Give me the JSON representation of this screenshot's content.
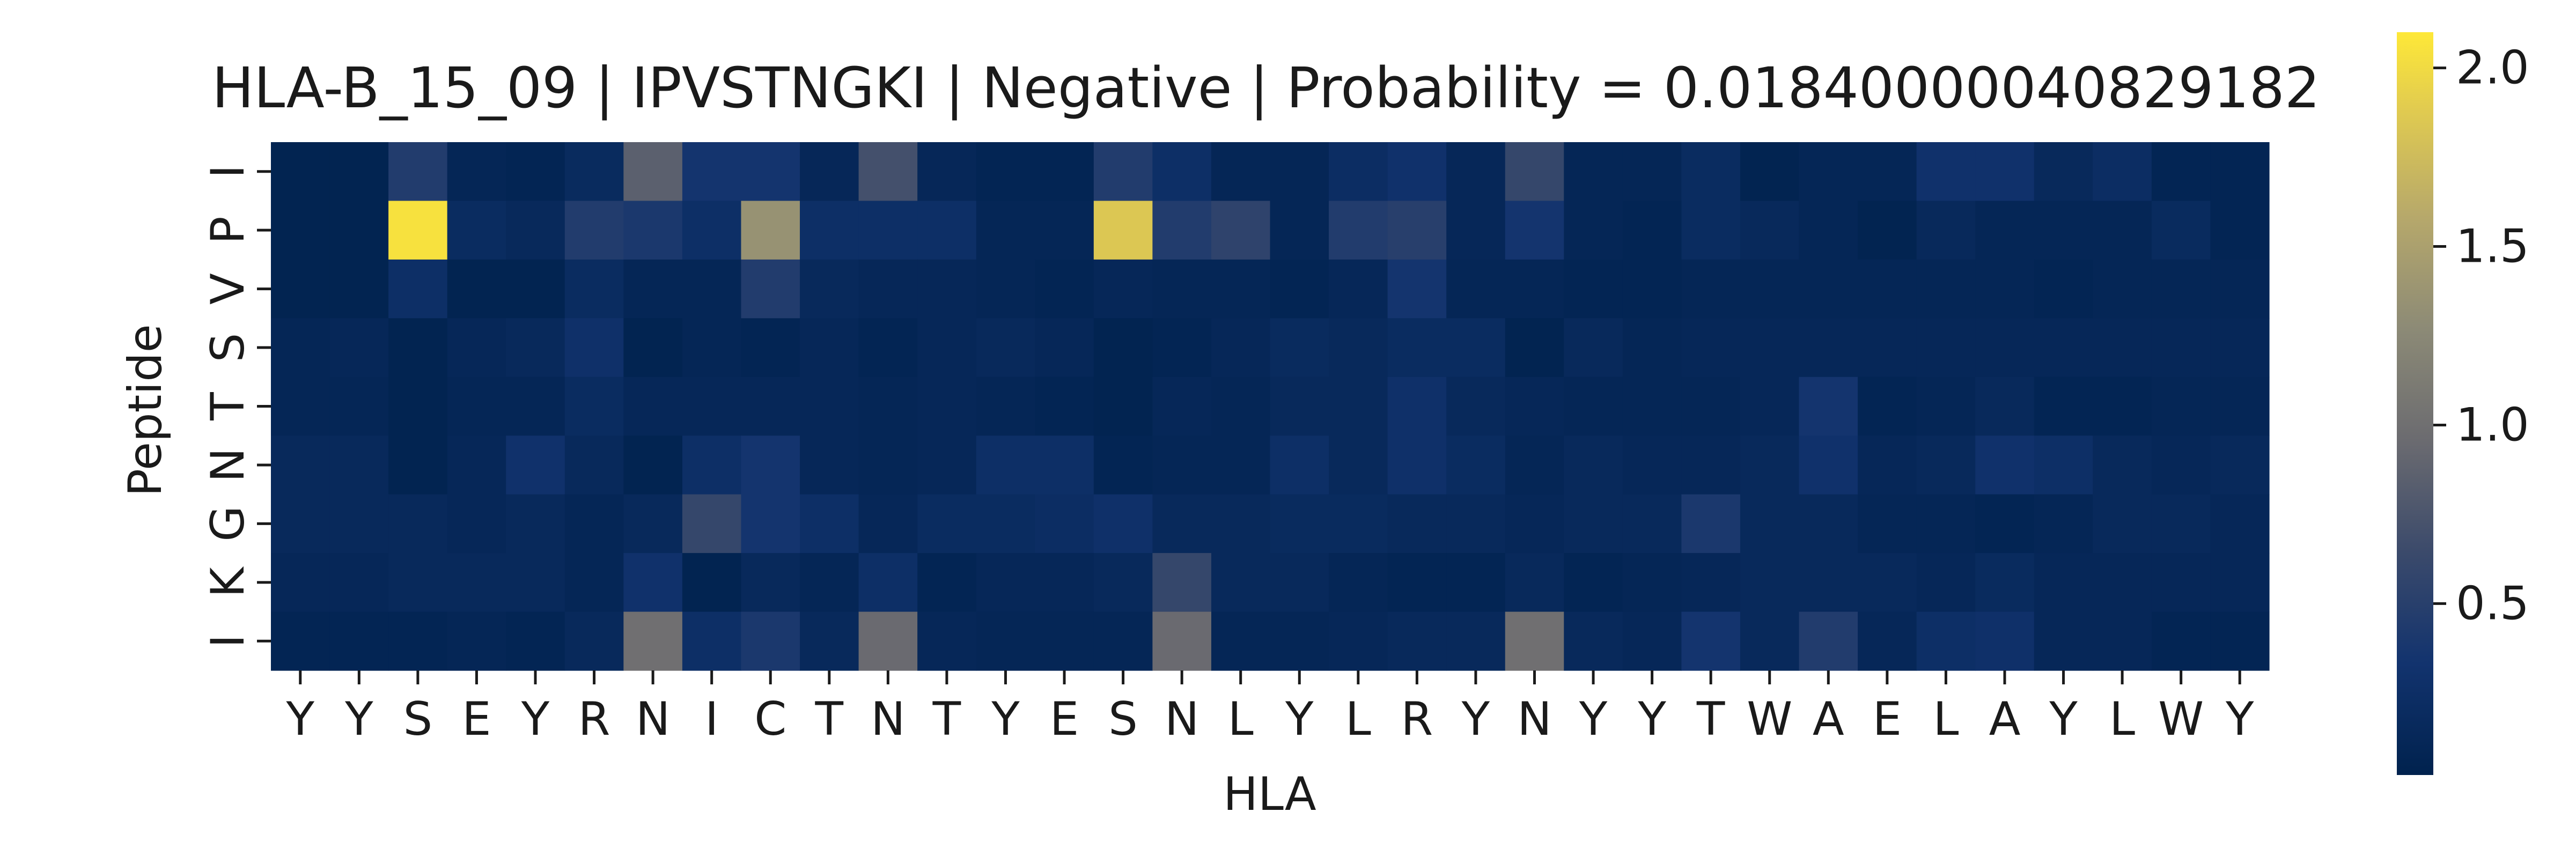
{
  "chart_data": {
    "type": "heatmap",
    "title": "HLA-B_15_09 | IPVSTNGKI | Negative | Probability = 0.01840000040829182",
    "xlabel": "HLA",
    "ylabel": "Peptide",
    "x_tick_labels": [
      "Y",
      "Y",
      "S",
      "E",
      "Y",
      "R",
      "N",
      "I",
      "C",
      "T",
      "N",
      "T",
      "Y",
      "E",
      "S",
      "N",
      "L",
      "Y",
      "L",
      "R",
      "Y",
      "N",
      "Y",
      "Y",
      "T",
      "W",
      "A",
      "E",
      "L",
      "A",
      "Y",
      "L",
      "W",
      "Y"
    ],
    "y_tick_labels": [
      "I",
      "P",
      "V",
      "S",
      "T",
      "N",
      "G",
      "K",
      "I"
    ],
    "colormap": "cividis",
    "colorbar": {
      "min": 0.02,
      "max": 2.1,
      "ticks": [
        0.5,
        1.0,
        1.5,
        2.0
      ],
      "tick_labels": [
        "0.5",
        "1.0",
        "1.5",
        "2.0"
      ]
    },
    "values": [
      [
        0.05,
        0.05,
        0.45,
        0.1,
        0.08,
        0.18,
        0.85,
        0.35,
        0.35,
        0.12,
        0.7,
        0.12,
        0.08,
        0.08,
        0.45,
        0.25,
        0.1,
        0.1,
        0.22,
        0.3,
        0.12,
        0.6,
        0.1,
        0.1,
        0.2,
        0.05,
        0.1,
        0.1,
        0.3,
        0.3,
        0.15,
        0.22,
        0.08,
        0.08
      ],
      [
        0.05,
        0.05,
        2.05,
        0.2,
        0.15,
        0.45,
        0.4,
        0.25,
        1.35,
        0.25,
        0.25,
        0.25,
        0.1,
        0.1,
        1.85,
        0.45,
        0.55,
        0.1,
        0.45,
        0.5,
        0.12,
        0.35,
        0.1,
        0.08,
        0.2,
        0.15,
        0.1,
        0.05,
        0.15,
        0.1,
        0.1,
        0.1,
        0.18,
        0.08
      ],
      [
        0.05,
        0.05,
        0.25,
        0.05,
        0.05,
        0.2,
        0.1,
        0.1,
        0.45,
        0.15,
        0.12,
        0.12,
        0.1,
        0.08,
        0.12,
        0.1,
        0.1,
        0.08,
        0.12,
        0.35,
        0.1,
        0.1,
        0.08,
        0.08,
        0.1,
        0.1,
        0.1,
        0.1,
        0.1,
        0.1,
        0.08,
        0.1,
        0.1,
        0.1
      ],
      [
        0.1,
        0.12,
        0.05,
        0.12,
        0.15,
        0.28,
        0.05,
        0.1,
        0.08,
        0.12,
        0.08,
        0.12,
        0.15,
        0.12,
        0.05,
        0.08,
        0.12,
        0.18,
        0.15,
        0.2,
        0.2,
        0.05,
        0.15,
        0.1,
        0.12,
        0.12,
        0.12,
        0.12,
        0.12,
        0.12,
        0.12,
        0.12,
        0.12,
        0.12
      ],
      [
        0.1,
        0.1,
        0.05,
        0.1,
        0.1,
        0.2,
        0.12,
        0.12,
        0.12,
        0.12,
        0.1,
        0.12,
        0.1,
        0.08,
        0.05,
        0.12,
        0.1,
        0.15,
        0.15,
        0.28,
        0.15,
        0.12,
        0.1,
        0.1,
        0.1,
        0.12,
        0.35,
        0.08,
        0.1,
        0.15,
        0.08,
        0.08,
        0.1,
        0.1
      ],
      [
        0.15,
        0.15,
        0.05,
        0.12,
        0.3,
        0.15,
        0.05,
        0.25,
        0.35,
        0.12,
        0.1,
        0.12,
        0.25,
        0.25,
        0.08,
        0.1,
        0.1,
        0.25,
        0.15,
        0.28,
        0.2,
        0.1,
        0.15,
        0.12,
        0.12,
        0.15,
        0.3,
        0.12,
        0.15,
        0.3,
        0.25,
        0.15,
        0.12,
        0.15
      ],
      [
        0.15,
        0.15,
        0.15,
        0.12,
        0.15,
        0.1,
        0.15,
        0.6,
        0.35,
        0.25,
        0.12,
        0.2,
        0.2,
        0.22,
        0.28,
        0.15,
        0.15,
        0.18,
        0.18,
        0.15,
        0.15,
        0.12,
        0.15,
        0.15,
        0.4,
        0.15,
        0.15,
        0.1,
        0.1,
        0.08,
        0.1,
        0.15,
        0.15,
        0.12
      ],
      [
        0.12,
        0.12,
        0.15,
        0.15,
        0.15,
        0.1,
        0.3,
        0.05,
        0.15,
        0.1,
        0.25,
        0.08,
        0.12,
        0.12,
        0.15,
        0.6,
        0.15,
        0.15,
        0.1,
        0.08,
        0.08,
        0.15,
        0.08,
        0.1,
        0.12,
        0.15,
        0.15,
        0.15,
        0.12,
        0.18,
        0.12,
        0.12,
        0.12,
        0.12
      ],
      [
        0.08,
        0.08,
        0.08,
        0.1,
        0.08,
        0.15,
        1.0,
        0.25,
        0.4,
        0.15,
        0.95,
        0.12,
        0.1,
        0.1,
        0.1,
        0.95,
        0.1,
        0.1,
        0.12,
        0.15,
        0.15,
        1.0,
        0.15,
        0.12,
        0.35,
        0.15,
        0.45,
        0.12,
        0.25,
        0.28,
        0.12,
        0.12,
        0.08,
        0.08
      ]
    ]
  }
}
